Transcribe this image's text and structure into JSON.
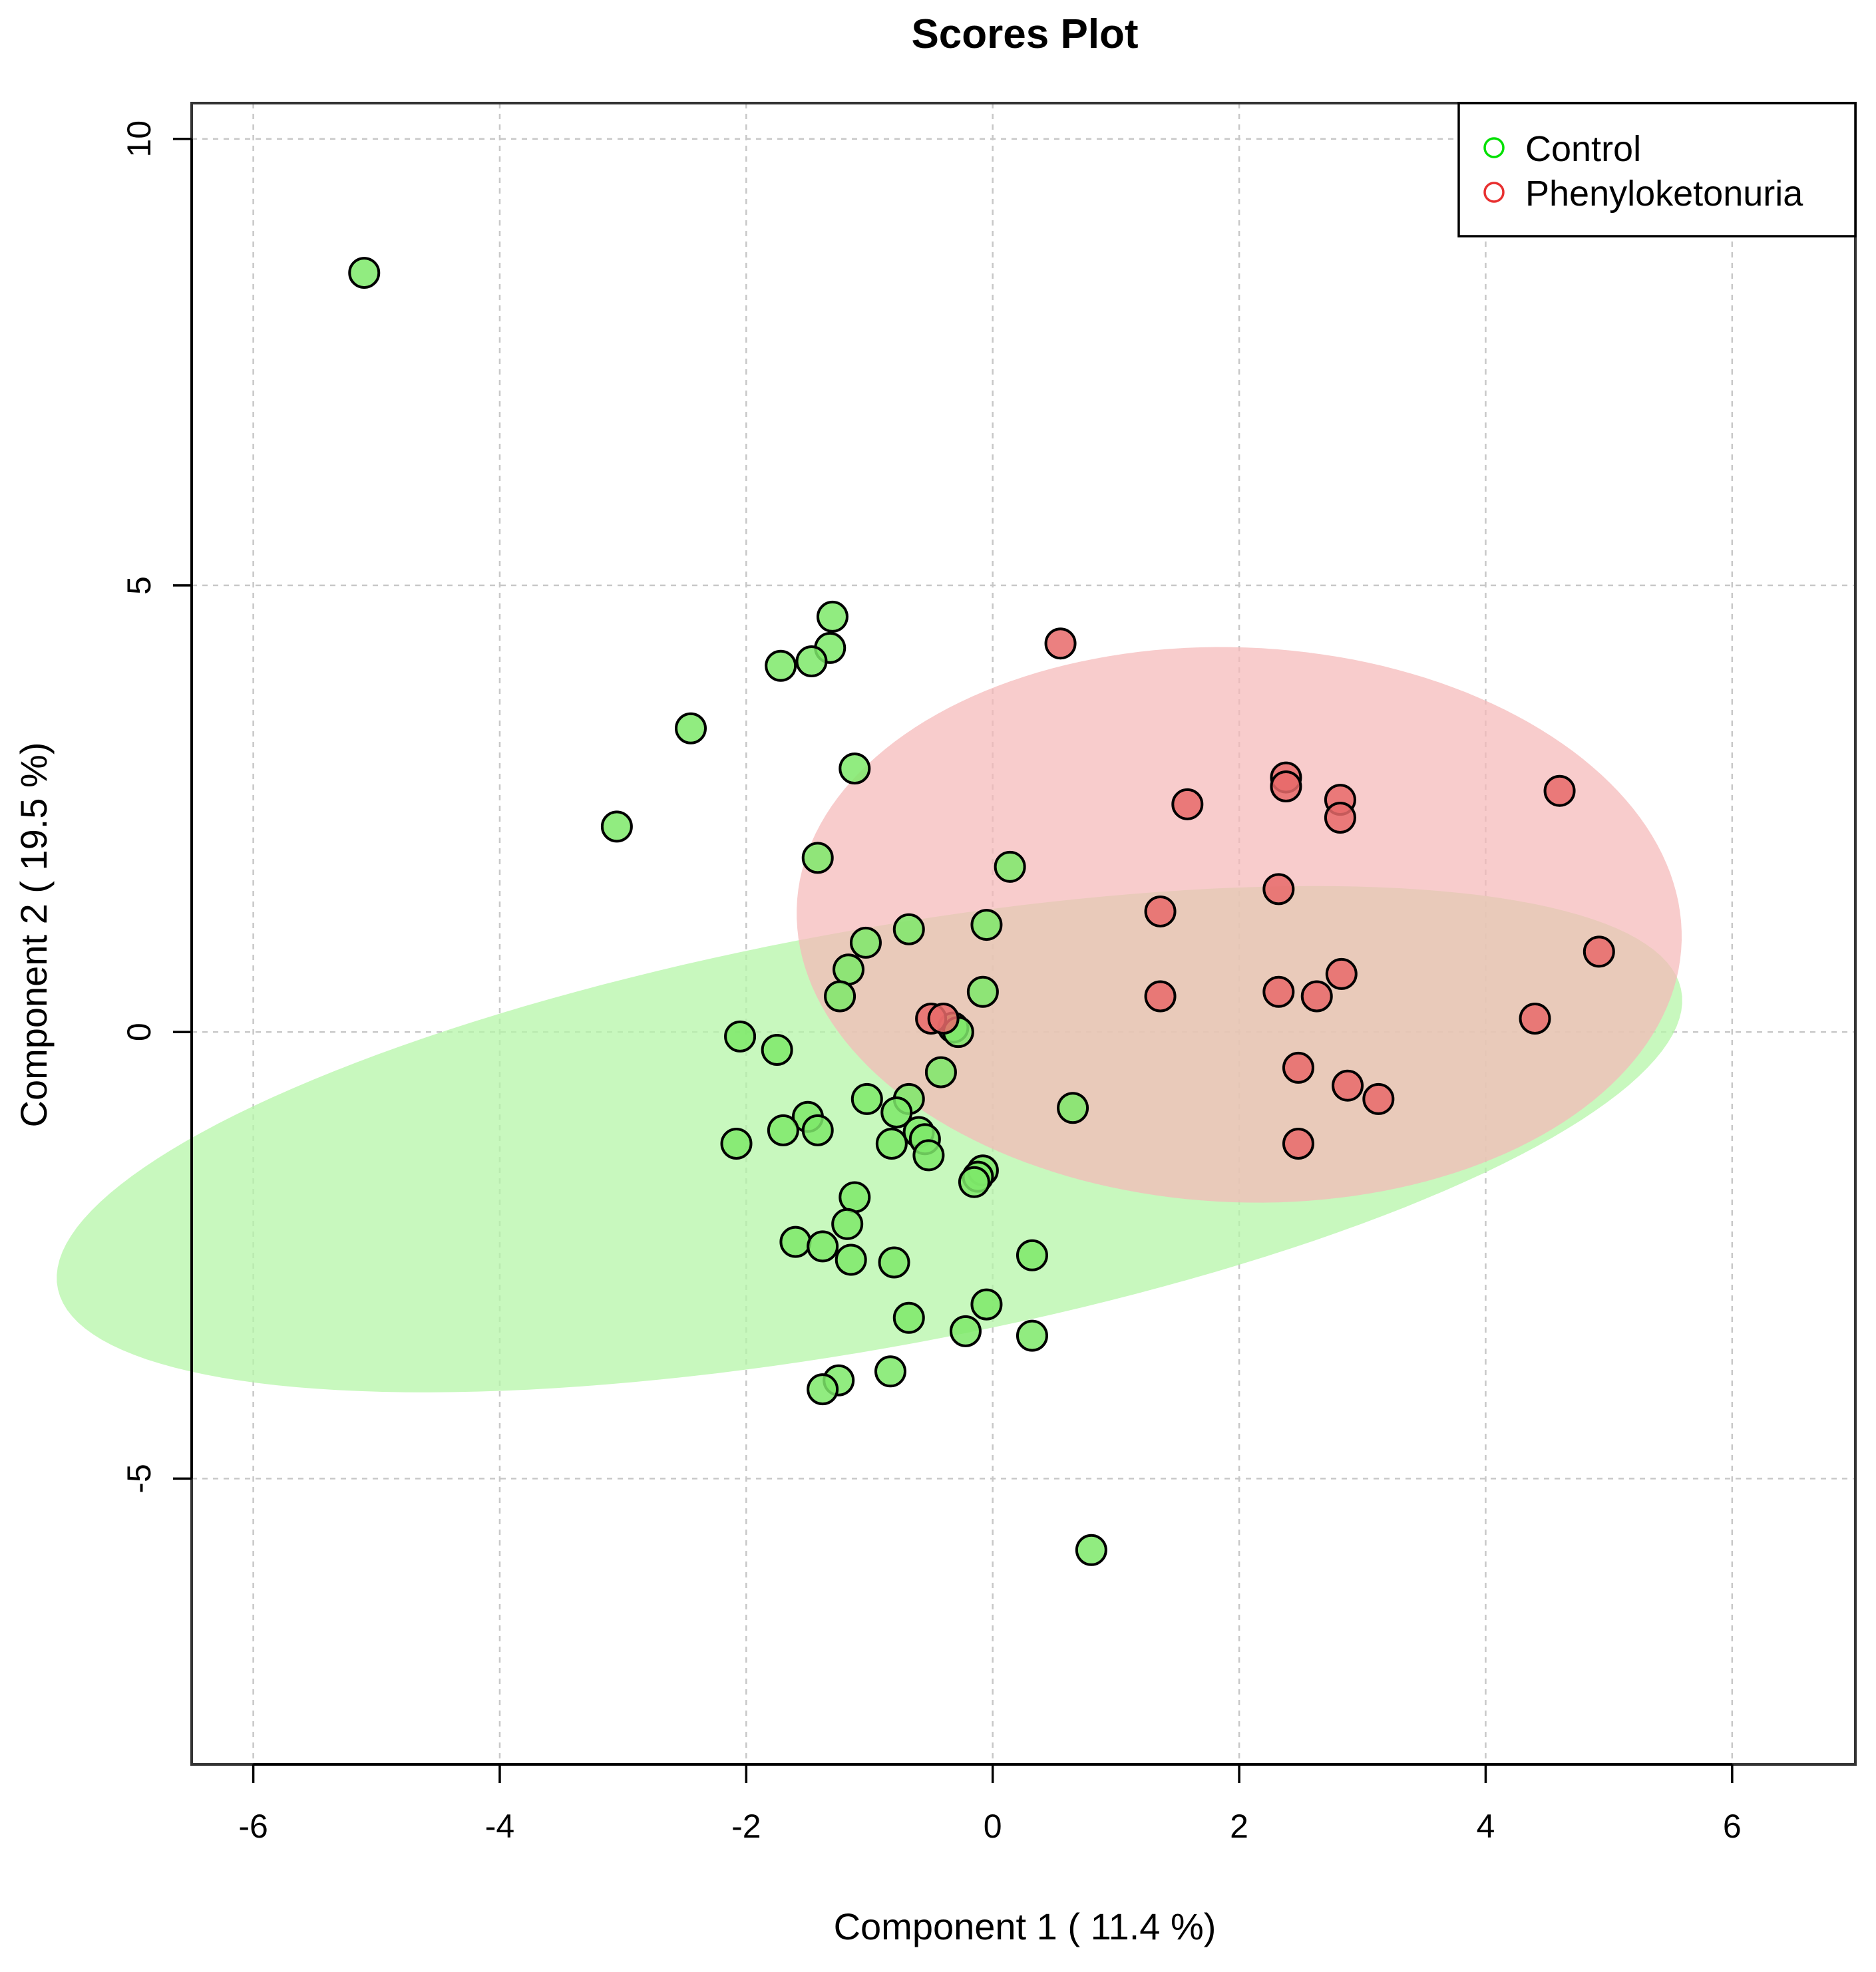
{
  "chart_data": {
    "type": "scatter",
    "title": "Scores Plot",
    "xlabel": "Component 1 ( 11.4 %)",
    "ylabel": "Component 2 ( 19.5 %)",
    "xlim": [
      -6.5,
      7
    ],
    "ylim": [
      -8.2,
      10.4
    ],
    "x_ticks": [
      -6,
      -4,
      -2,
      0,
      2,
      4,
      6
    ],
    "y_ticks": [
      -5,
      0,
      5,
      10
    ],
    "grid": true,
    "legend_position": "top-right",
    "series": [
      {
        "name": "Control",
        "color": "#7ee96a",
        "legend_color": "#00e000",
        "ellipse": {
          "center": [
            -1.0,
            -1.2
          ],
          "semi_major": 6.8,
          "semi_minor": 2.3,
          "angle_deg": -75,
          "color": "#b6f5a8"
        },
        "points": [
          [
            -5.1,
            8.5
          ],
          [
            -3.05,
            2.3
          ],
          [
            -2.45,
            3.4
          ],
          [
            -1.3,
            4.65
          ],
          [
            -1.32,
            4.3
          ],
          [
            -1.47,
            4.15
          ],
          [
            -1.72,
            4.1
          ],
          [
            -1.12,
            2.95
          ],
          [
            -1.42,
            1.95
          ],
          [
            -0.68,
            1.15
          ],
          [
            -1.03,
            1.0
          ],
          [
            -1.17,
            0.7
          ],
          [
            -1.24,
            0.4
          ],
          [
            -2.05,
            -0.05
          ],
          [
            -1.75,
            -0.2
          ],
          [
            -0.05,
            1.2
          ],
          [
            0.14,
            1.85
          ],
          [
            -0.08,
            0.45
          ],
          [
            -0.32,
            0.05
          ],
          [
            -0.28,
            0.0
          ],
          [
            -0.42,
            -0.45
          ],
          [
            -1.02,
            -0.75
          ],
          [
            -0.68,
            -0.75
          ],
          [
            -0.78,
            -0.9
          ],
          [
            -1.5,
            -0.95
          ],
          [
            -1.7,
            -1.1
          ],
          [
            -1.42,
            -1.1
          ],
          [
            -0.6,
            -1.12
          ],
          [
            -0.55,
            -1.2
          ],
          [
            -0.82,
            -1.25
          ],
          [
            -2.08,
            -1.25
          ],
          [
            -0.52,
            -1.38
          ],
          [
            -0.08,
            -1.55
          ],
          [
            -0.12,
            -1.62
          ],
          [
            -0.15,
            -1.68
          ],
          [
            -1.12,
            -1.85
          ],
          [
            -1.18,
            -2.15
          ],
          [
            -1.6,
            -2.35
          ],
          [
            -1.38,
            -2.4
          ],
          [
            -1.15,
            -2.55
          ],
          [
            -0.8,
            -2.58
          ],
          [
            0.32,
            -2.5
          ],
          [
            -0.05,
            -3.05
          ],
          [
            -0.68,
            -3.2
          ],
          [
            -0.22,
            -3.35
          ],
          [
            0.32,
            -3.4
          ],
          [
            -0.83,
            -3.8
          ],
          [
            -1.25,
            -3.9
          ],
          [
            -1.38,
            -4.0
          ],
          [
            0.8,
            -5.8
          ],
          [
            0.65,
            -0.85
          ]
        ]
      },
      {
        "name": "Phenyloketonuria",
        "color": "#e86a6a",
        "legend_color": "#e83030",
        "ellipse": {
          "center": [
            2.0,
            1.2
          ],
          "semi_major": 3.1,
          "semi_minor": 3.6,
          "angle_deg": -8,
          "color": "#f5b8b8"
        },
        "points": [
          [
            0.55,
            4.35
          ],
          [
            1.58,
            2.55
          ],
          [
            2.38,
            2.85
          ],
          [
            2.38,
            2.75
          ],
          [
            2.82,
            2.6
          ],
          [
            2.82,
            2.4
          ],
          [
            4.6,
            2.7
          ],
          [
            2.32,
            1.6
          ],
          [
            1.36,
            1.35
          ],
          [
            4.92,
            0.9
          ],
          [
            2.83,
            0.65
          ],
          [
            1.36,
            0.4
          ],
          [
            2.32,
            0.45
          ],
          [
            2.63,
            0.4
          ],
          [
            4.4,
            0.15
          ],
          [
            -0.5,
            0.15
          ],
          [
            -0.4,
            0.15
          ],
          [
            2.48,
            -0.4
          ],
          [
            2.88,
            -0.6
          ],
          [
            3.13,
            -0.75
          ],
          [
            2.48,
            -1.25
          ]
        ]
      }
    ]
  }
}
